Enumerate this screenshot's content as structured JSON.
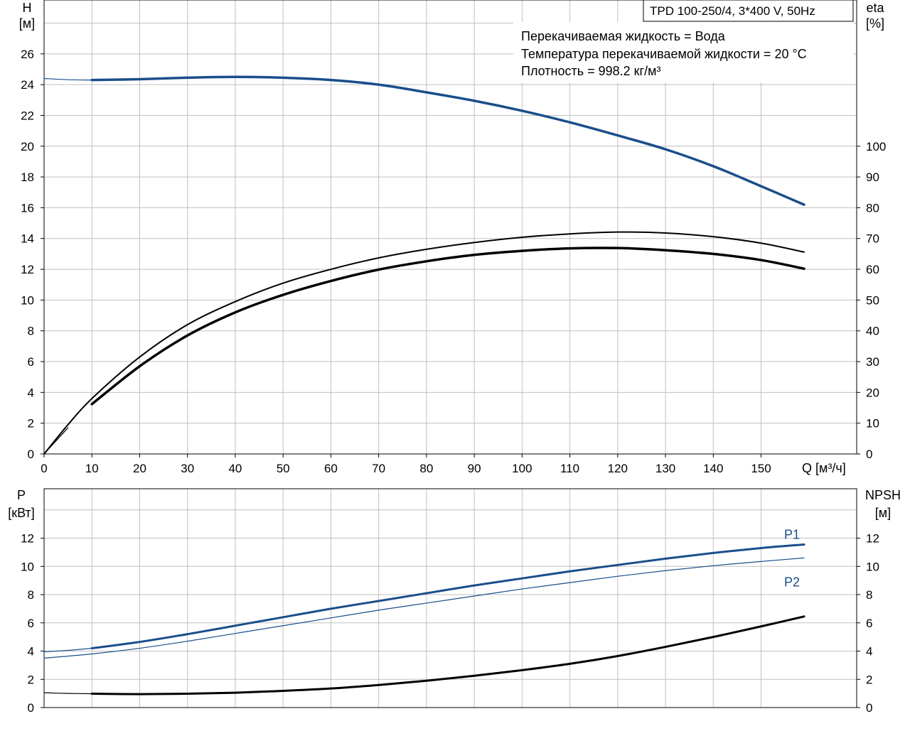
{
  "header": {
    "model": "TPD 100-250/4, 3*400 V, 50Hz",
    "info_lines": [
      "Перекачиваемая жидкость = Вода",
      "Температура перекачиваемой жидкости = 20 °C",
      "Плотность = 998.2 кг/м³"
    ]
  },
  "colors": {
    "blue": "#1a4e8a",
    "black": "#000000",
    "grid": "#c0c0c0"
  },
  "chart_data": [
    {
      "type": "line",
      "name": "upper",
      "xlabel": "Q [м³/ч]",
      "ylabel_left": [
        "H",
        "[м]"
      ],
      "ylabel_right": [
        "eta",
        "[%]"
      ],
      "xlim": [
        0,
        170
      ],
      "ylim_left": [
        0,
        29.5
      ],
      "ylim_right": [
        0,
        147.5
      ],
      "x_ticks": [
        0,
        10,
        20,
        30,
        40,
        50,
        60,
        70,
        80,
        90,
        100,
        110,
        120,
        130,
        140,
        150
      ],
      "y_ticks_left": [
        0,
        2,
        4,
        6,
        8,
        10,
        12,
        14,
        16,
        18,
        20,
        22,
        24,
        26
      ],
      "y_ticks_right": [
        0,
        10,
        20,
        30,
        40,
        50,
        60,
        70,
        80,
        90,
        100
      ],
      "grid": true,
      "series": [
        {
          "axis": "left",
          "color": "blue",
          "width": 1.2,
          "x": [
            0,
            5,
            10
          ],
          "y": [
            24.4,
            24.32,
            24.3
          ]
        },
        {
          "axis": "left",
          "color": "blue",
          "width": 3.5,
          "x": [
            10,
            20,
            30,
            40,
            50,
            60,
            70,
            80,
            90,
            100,
            110,
            120,
            130,
            140,
            150,
            159
          ],
          "y": [
            24.3,
            24.35,
            24.45,
            24.5,
            24.45,
            24.3,
            24.0,
            23.5,
            22.95,
            22.3,
            21.55,
            20.7,
            19.8,
            18.7,
            17.4,
            16.2
          ]
        },
        {
          "axis": "right",
          "color": "black",
          "width": 2,
          "x": [
            0,
            5,
            10,
            20,
            30,
            40,
            50,
            60,
            70,
            80,
            90,
            100,
            110,
            120,
            130,
            140,
            150,
            159
          ],
          "y": [
            0,
            9.5,
            18,
            31.5,
            42,
            49.5,
            55.5,
            60,
            63.7,
            66.5,
            68.7,
            70.4,
            71.5,
            72.1,
            71.8,
            70.6,
            68.5,
            65.6
          ]
        },
        {
          "axis": "right",
          "color": "black",
          "width": 1.2,
          "x": [
            0,
            5
          ],
          "y": [
            0,
            8.5
          ]
        },
        {
          "axis": "right",
          "color": "black",
          "width": 3.5,
          "x": [
            10,
            20,
            30,
            40,
            50,
            60,
            70,
            80,
            90,
            100,
            110,
            120,
            130,
            140,
            150,
            159
          ],
          "y": [
            16.2,
            28.5,
            38.5,
            46,
            51.7,
            56.2,
            59.9,
            62.6,
            64.7,
            66,
            66.8,
            66.9,
            66.2,
            65,
            63,
            60.2
          ]
        }
      ]
    },
    {
      "type": "line",
      "name": "lower",
      "ylabel_left": [
        "P",
        "[кВт]"
      ],
      "ylabel_right": [
        "NPSH",
        "[м]"
      ],
      "xlim": [
        0,
        170
      ],
      "ylim_left": [
        0,
        15.5
      ],
      "ylim_right": [
        0,
        15.5
      ],
      "y_ticks_left": [
        0,
        2,
        4,
        6,
        8,
        10,
        12
      ],
      "y_ticks_right": [
        0,
        2,
        4,
        6,
        8,
        10,
        12
      ],
      "grid": true,
      "series": [
        {
          "axis": "left",
          "color": "blue",
          "width": 1.2,
          "x": [
            0,
            5,
            10
          ],
          "y": [
            3.95,
            4.05,
            4.2
          ]
        },
        {
          "axis": "left",
          "color": "blue",
          "width": 3,
          "label": "P1",
          "x": [
            10,
            20,
            30,
            40,
            50,
            60,
            70,
            80,
            90,
            100,
            110,
            120,
            130,
            140,
            150,
            159
          ],
          "y": [
            4.2,
            4.65,
            5.2,
            5.8,
            6.4,
            7.0,
            7.55,
            8.1,
            8.65,
            9.15,
            9.65,
            10.1,
            10.55,
            10.95,
            11.3,
            11.55
          ]
        },
        {
          "axis": "left",
          "color": "blue",
          "width": 1.2,
          "label": "P2",
          "x": [
            0,
            10,
            20,
            30,
            40,
            50,
            60,
            70,
            80,
            90,
            100,
            110,
            120,
            130,
            140,
            150,
            159
          ],
          "y": [
            3.5,
            3.8,
            4.2,
            4.7,
            5.25,
            5.8,
            6.35,
            6.9,
            7.4,
            7.9,
            8.4,
            8.85,
            9.3,
            9.7,
            10.05,
            10.35,
            10.6
          ]
        },
        {
          "axis": "right",
          "color": "black",
          "width": 1.2,
          "x": [
            0,
            5,
            10
          ],
          "y": [
            1.05,
            1.0,
            0.98
          ]
        },
        {
          "axis": "right",
          "color": "black",
          "width": 3,
          "x": [
            10,
            20,
            30,
            40,
            50,
            60,
            70,
            80,
            90,
            100,
            110,
            120,
            130,
            140,
            150,
            159
          ],
          "y": [
            0.98,
            0.95,
            0.98,
            1.05,
            1.18,
            1.35,
            1.6,
            1.9,
            2.25,
            2.65,
            3.1,
            3.65,
            4.3,
            5.0,
            5.75,
            6.45
          ]
        }
      ]
    }
  ]
}
